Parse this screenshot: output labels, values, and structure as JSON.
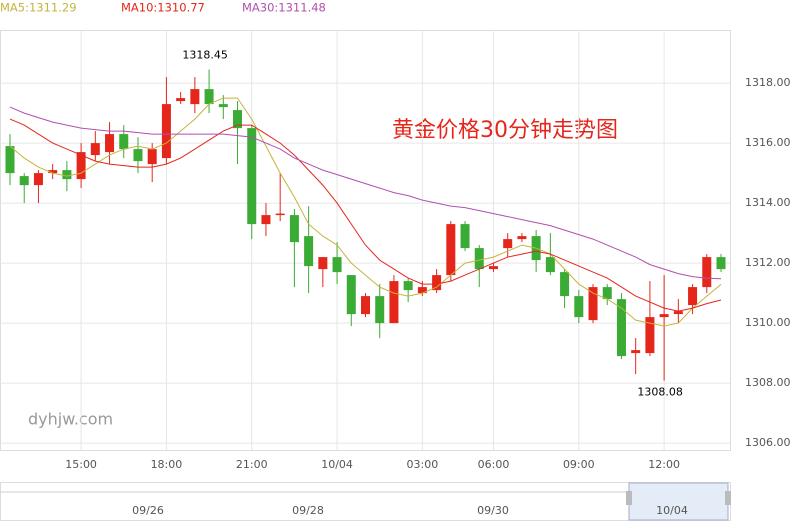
{
  "chart_data": {
    "type": "candlestick",
    "title": "黄金价格30分钟走势图",
    "watermark": "dyhjw.com",
    "categories": [
      null,
      null,
      null,
      null,
      null,
      "15:00",
      null,
      null,
      null,
      null,
      null,
      "18:00",
      null,
      null,
      null,
      null,
      null,
      "21:00",
      null,
      null,
      null,
      null,
      null,
      "10/04",
      null,
      null,
      null,
      null,
      null,
      "03:00",
      null,
      null,
      null,
      null,
      "06:00",
      null,
      null,
      null,
      null,
      null,
      "09:00",
      null,
      null,
      null,
      null,
      null,
      "12:00",
      null,
      null,
      null,
      null
    ],
    "open": [
      1315.9,
      1314.9,
      1314.6,
      1315.0,
      1315.1,
      1314.8,
      1315.6,
      1315.7,
      1316.3,
      1315.8,
      1315.3,
      1315.5,
      1317.4,
      1317.3,
      1317.8,
      1317.3,
      1317.1,
      1316.5,
      1313.3,
      1313.6,
      1313.6,
      1312.9,
      1311.8,
      1312.2,
      1311.6,
      1310.3,
      1310.9,
      1310.0,
      1311.4,
      1311.0,
      1311.1,
      1311.6,
      1313.3,
      1312.5,
      1311.8,
      1312.5,
      1312.8,
      1312.9,
      1312.2,
      1311.7,
      1310.9,
      1310.1,
      1311.2,
      1310.8,
      1309.0,
      1309.0,
      1310.2,
      1310.3,
      1310.6,
      1311.2,
      1312.2
    ],
    "high": [
      1316.3,
      1315.0,
      1315.1,
      1315.3,
      1315.4,
      1316.0,
      1316.4,
      1316.7,
      1316.6,
      1316.2,
      1316.0,
      1318.2,
      1317.7,
      1318.2,
      1318.45,
      1317.6,
      1317.4,
      1316.6,
      1314.0,
      1315.0,
      1313.8,
      1313.9,
      1312.2,
      1312.7,
      1311.6,
      1311.0,
      1311.3,
      1311.6,
      1311.5,
      1311.4,
      1311.8,
      1313.4,
      1313.4,
      1312.6,
      1312.0,
      1313.0,
      1313.0,
      1313.1,
      1313.0,
      1311.8,
      1311.1,
      1311.3,
      1311.3,
      1311.0,
      1309.5,
      1311.4,
      1311.6,
      1310.8,
      1311.3,
      1312.3,
      1312.3
    ],
    "low": [
      1314.6,
      1314.0,
      1314.0,
      1314.8,
      1314.4,
      1314.5,
      1315.4,
      1315.3,
      1315.5,
      1315.0,
      1314.7,
      1315.3,
      1317.3,
      1317.0,
      1317.0,
      1316.8,
      1315.3,
      1312.8,
      1312.9,
      1313.4,
      1311.2,
      1311.0,
      1311.2,
      1311.3,
      1309.9,
      1310.2,
      1309.5,
      1310.0,
      1310.7,
      1310.9,
      1311.0,
      1311.4,
      1312.4,
      1311.2,
      1311.7,
      1312.2,
      1312.7,
      1311.7,
      1311.6,
      1310.5,
      1310.0,
      1310.0,
      1310.6,
      1308.8,
      1308.3,
      1308.9,
      1308.08,
      1310.0,
      1310.3,
      1311.0,
      1311.7
    ],
    "close": [
      1315.0,
      1314.6,
      1315.0,
      1315.1,
      1314.8,
      1315.7,
      1316.0,
      1316.3,
      1315.8,
      1315.4,
      1315.8,
      1317.3,
      1317.5,
      1317.8,
      1317.3,
      1317.2,
      1316.5,
      1313.3,
      1313.6,
      1313.65,
      1312.7,
      1311.9,
      1312.2,
      1311.7,
      1310.3,
      1310.9,
      1310.0,
      1311.4,
      1311.1,
      1311.2,
      1311.6,
      1313.3,
      1312.5,
      1311.8,
      1311.9,
      1312.8,
      1312.9,
      1312.1,
      1311.7,
      1310.9,
      1310.2,
      1311.2,
      1310.8,
      1308.9,
      1309.1,
      1310.2,
      1310.3,
      1310.4,
      1311.2,
      1312.2,
      1311.8
    ],
    "up_color": "#e5261b",
    "down_color": "#3aab35",
    "series": [
      {
        "name": "MA5:1311.29",
        "color": "#c4b43c",
        "values": [
          1315.9,
          1315.5,
          1315.2,
          1315.0,
          1314.9,
          1315.0,
          1315.3,
          1315.6,
          1315.8,
          1315.9,
          1315.8,
          1316.0,
          1316.4,
          1316.8,
          1317.3,
          1317.5,
          1317.5,
          1316.8,
          1315.9,
          1315.0,
          1314.2,
          1313.3,
          1312.9,
          1312.6,
          1312.0,
          1311.6,
          1311.2,
          1311.0,
          1310.9,
          1311.0,
          1311.2,
          1311.6,
          1312.0,
          1312.1,
          1312.2,
          1312.4,
          1312.6,
          1312.5,
          1312.3,
          1311.8,
          1311.3,
          1311.0,
          1310.8,
          1310.5,
          1310.1,
          1310.0,
          1309.9,
          1310.0,
          1310.5,
          1310.9,
          1311.29
        ]
      },
      {
        "name": "MA10:1310.77",
        "color": "#e5261b",
        "values": [
          1316.8,
          1316.6,
          1316.3,
          1316.0,
          1315.8,
          1315.6,
          1315.4,
          1315.3,
          1315.25,
          1315.2,
          1315.2,
          1315.3,
          1315.5,
          1315.8,
          1316.1,
          1316.4,
          1316.6,
          1316.6,
          1316.3,
          1316.0,
          1315.6,
          1315.1,
          1314.6,
          1314.0,
          1313.3,
          1312.6,
          1312.1,
          1311.8,
          1311.5,
          1311.3,
          1311.3,
          1311.4,
          1311.6,
          1311.8,
          1312.0,
          1312.2,
          1312.3,
          1312.4,
          1312.3,
          1312.1,
          1311.9,
          1311.7,
          1311.5,
          1311.2,
          1310.9,
          1310.7,
          1310.5,
          1310.4,
          1310.5,
          1310.65,
          1310.77
        ]
      },
      {
        "name": "MA30:1311.48",
        "color": "#b24fb0",
        "values": [
          1317.2,
          1317.0,
          1316.85,
          1316.7,
          1316.6,
          1316.5,
          1316.45,
          1316.4,
          1316.4,
          1316.35,
          1316.3,
          1316.3,
          1316.3,
          1316.3,
          1316.3,
          1316.3,
          1316.25,
          1316.2,
          1316.0,
          1315.8,
          1315.5,
          1315.3,
          1315.1,
          1314.95,
          1314.8,
          1314.65,
          1314.5,
          1314.35,
          1314.25,
          1314.1,
          1314.0,
          1313.9,
          1313.85,
          1313.75,
          1313.65,
          1313.55,
          1313.45,
          1313.35,
          1313.25,
          1313.1,
          1312.95,
          1312.8,
          1312.6,
          1312.4,
          1312.2,
          1311.95,
          1311.8,
          1311.65,
          1311.55,
          1311.5,
          1311.48
        ]
      }
    ],
    "ylim": [
      1305.77,
      1319.77
    ],
    "yticks": [
      {
        "value": 1306,
        "label": "1306.00"
      },
      {
        "value": 1308,
        "label": "1308.00"
      },
      {
        "value": 1310,
        "label": "1310.00"
      },
      {
        "value": 1312,
        "label": "1312.00"
      },
      {
        "value": 1314,
        "label": "1314.00"
      },
      {
        "value": 1316,
        "label": "1316.00"
      },
      {
        "value": 1318,
        "label": "1318.00"
      }
    ],
    "grid": true,
    "annotations": [
      {
        "text": "1318.45",
        "index": 14,
        "at": "high"
      },
      {
        "text": "1308.08",
        "index": 46,
        "at": "low"
      }
    ],
    "navigator": {
      "labels": [
        "09/26",
        "09/28",
        "09/30",
        "10/04"
      ]
    }
  }
}
